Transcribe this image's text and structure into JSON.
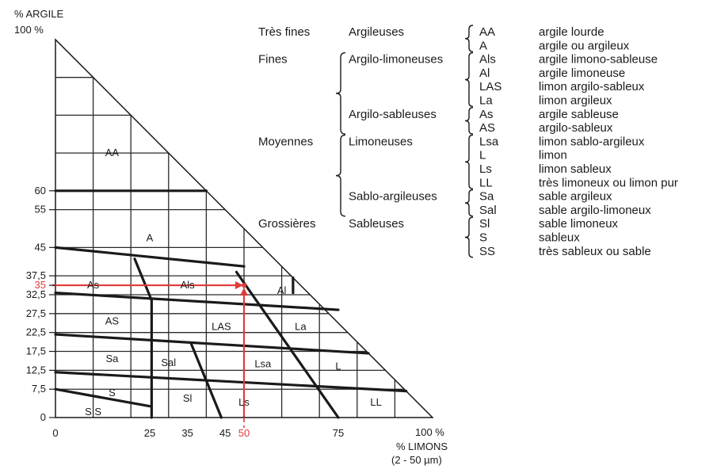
{
  "y_axis": {
    "title": "% ARGILE",
    "top_label": "100 %",
    "ticks": [
      {
        "label": "60",
        "v": 60
      },
      {
        "label": "55",
        "v": 55
      },
      {
        "label": "45",
        "v": 45
      },
      {
        "label": "37,5",
        "v": 37.5
      },
      {
        "label": "35",
        "v": 35,
        "highlight": true
      },
      {
        "label": "32,5",
        "v": 32.5
      },
      {
        "label": "27,5",
        "v": 27.5
      },
      {
        "label": "22,5",
        "v": 22.5
      },
      {
        "label": "17,5",
        "v": 17.5
      },
      {
        "label": "12,5",
        "v": 12.5
      },
      {
        "label": "7,5",
        "v": 7.5
      },
      {
        "label": "0",
        "v": 0
      }
    ]
  },
  "x_axis": {
    "title": "% LIMONS",
    "subtitle": "(2 - 50 µm)",
    "end_label": "100 %",
    "ticks": [
      {
        "label": "0",
        "v": 0
      },
      {
        "label": "25",
        "v": 25
      },
      {
        "label": "35",
        "v": 35
      },
      {
        "label": "45",
        "v": 45
      },
      {
        "label": "50",
        "v": 50,
        "highlight": true
      },
      {
        "label": "75",
        "v": 75
      }
    ]
  },
  "zones": [
    {
      "code": "AA",
      "silt": 15,
      "clay": 70
    },
    {
      "code": "A",
      "silt": 25,
      "clay": 47.5
    },
    {
      "code": "As",
      "silt": 10,
      "clay": 35
    },
    {
      "code": "Als",
      "silt": 35,
      "clay": 35
    },
    {
      "code": "Al",
      "silt": 60,
      "clay": 33.5
    },
    {
      "code": "AS",
      "silt": 15,
      "clay": 25.5
    },
    {
      "code": "LAS",
      "silt": 44,
      "clay": 24
    },
    {
      "code": "La",
      "silt": 65,
      "clay": 24
    },
    {
      "code": "Sa",
      "silt": 15,
      "clay": 15.5
    },
    {
      "code": "Sal",
      "silt": 30,
      "clay": 14.5
    },
    {
      "code": "Lsa",
      "silt": 55,
      "clay": 14.2
    },
    {
      "code": "L",
      "silt": 75,
      "clay": 13.5
    },
    {
      "code": "S",
      "silt": 15,
      "clay": 6.5
    },
    {
      "code": "Sl",
      "silt": 35,
      "clay": 5
    },
    {
      "code": "Ls",
      "silt": 50,
      "clay": 4
    },
    {
      "code": "LL",
      "silt": 85,
      "clay": 4
    },
    {
      "code": "S S",
      "silt": 10,
      "clay": 1.5
    }
  ],
  "example": {
    "silt": 50,
    "clay": 35
  },
  "legend": {
    "rows": [
      {
        "code": "AA",
        "name": "argile lourde"
      },
      {
        "code": "A",
        "name": "argile ou argileux"
      },
      {
        "code": "Als",
        "name": "argile limono-sableuse"
      },
      {
        "code": "Al",
        "name": "argile limoneuse"
      },
      {
        "code": "LAS",
        "name": "limon argilo-sableux"
      },
      {
        "code": "La",
        "name": "limon argileux"
      },
      {
        "code": "As",
        "name": "argile sableuse"
      },
      {
        "code": "AS",
        "name": "argilo-sableux"
      },
      {
        "code": "Lsa",
        "name": "limon sablo-argileux"
      },
      {
        "code": "L",
        "name": "limon"
      },
      {
        "code": "Ls",
        "name": "limon sableux"
      },
      {
        "code": "LL",
        "name": "très limoneux ou limon pur"
      },
      {
        "code": "Sa",
        "name": "sable argileux"
      },
      {
        "code": "Sal",
        "name": "sable argilo-limoneux"
      },
      {
        "code": "Sl",
        "name": "sable limoneux"
      },
      {
        "code": "S",
        "name": "sableux"
      },
      {
        "code": "SS",
        "name": "très sableux ou sable"
      }
    ],
    "classes": [
      {
        "label": "Très fines",
        "row": 0
      },
      {
        "label": "Fines",
        "row": 2
      },
      {
        "label": "Moyennes",
        "row": 8
      },
      {
        "label": "Grossières",
        "row": 14
      }
    ],
    "groups": [
      {
        "label": "Argileuses",
        "row": 0,
        "from": 0,
        "to": 1
      },
      {
        "label": "Argilo-limoneuses",
        "row": 2,
        "from": 2,
        "to": 5
      },
      {
        "label": "Argilo-sableuses",
        "row": 6,
        "from": 6,
        "to": 7
      },
      {
        "label": "Limoneuses",
        "row": 8,
        "from": 8,
        "to": 11
      },
      {
        "label": "Sablo-argileuses",
        "row": 12,
        "from": 12,
        "to": 13
      },
      {
        "label": "Sableuses",
        "row": 14,
        "from": 14,
        "to": 16
      }
    ]
  }
}
